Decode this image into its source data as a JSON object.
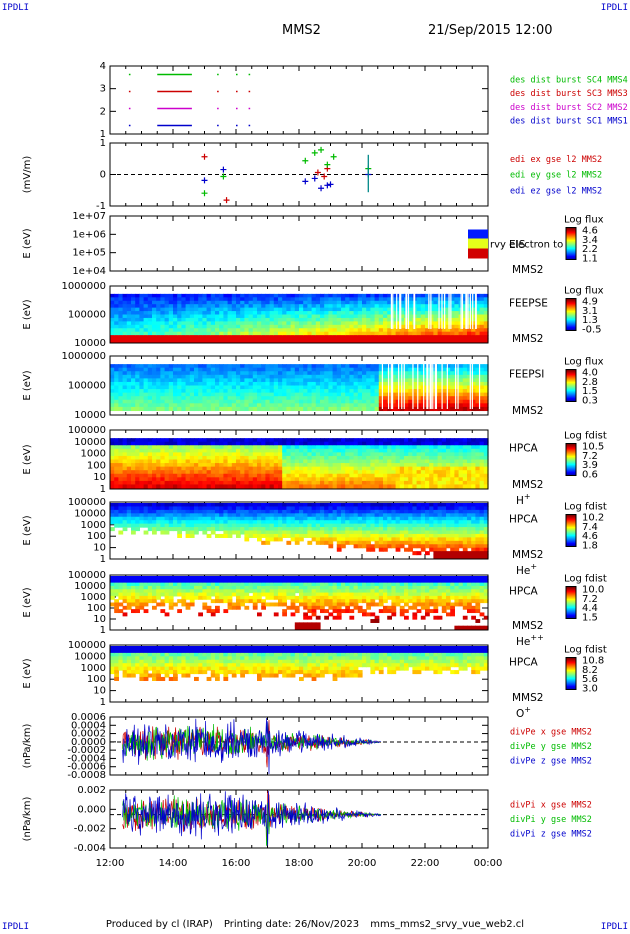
{
  "header": {
    "corner_left_top": "IPDLI",
    "corner_right_top": "IPDLI",
    "corner_left_bottom": "IPDLI",
    "corner_right_bottom": "IPDLI",
    "spacecraft": "MMS2",
    "datetime": "21/Sep/2015 12:00"
  },
  "footer": {
    "produced_by": "Produced by cl (IRAP)",
    "printing_date": "Printing date: 26/Nov/2023",
    "filename": "mms_mms2_srvy_vue_web2.cl"
  },
  "time_axis": {
    "ticks": [
      "12:00",
      "14:00",
      "16:00",
      "18:00",
      "20:00",
      "22:00",
      "00:00"
    ],
    "range_hours": [
      12,
      24
    ]
  },
  "colors": {
    "blue": "#0000cc",
    "magenta": "#cc00cc",
    "red": "#cc0000",
    "green": "#00bb00"
  },
  "chart_data": [
    {
      "type": "scatter",
      "panel": "burst",
      "yticks": [
        "1",
        "2",
        "3",
        "4"
      ],
      "ylim": [
        0.5,
        4.5
      ],
      "series": [
        {
          "name": "des dist burst SC1 MMS1",
          "color": "#0000cc",
          "level": 1,
          "intervals": [
            [
              12.6,
              12.65
            ],
            [
              13.5,
              14.6
            ],
            [
              15.4,
              15.45
            ],
            [
              16.0,
              16.05
            ],
            [
              16.4,
              16.45
            ]
          ]
        },
        {
          "name": "des dist burst SC2 MMS2",
          "color": "#cc00cc",
          "level": 2,
          "intervals": [
            [
              12.6,
              12.65
            ],
            [
              13.5,
              14.6
            ],
            [
              15.4,
              15.45
            ],
            [
              16.0,
              16.05
            ],
            [
              16.4,
              16.45
            ]
          ]
        },
        {
          "name": "des dist burst SC3 MMS3",
          "color": "#cc0000",
          "level": 3,
          "intervals": [
            [
              12.6,
              12.65
            ],
            [
              13.5,
              14.6
            ],
            [
              15.4,
              15.45
            ],
            [
              16.0,
              16.05
            ],
            [
              16.4,
              16.45
            ]
          ]
        },
        {
          "name": "des dist burst SC4 MMS4",
          "color": "#00bb00",
          "level": 4,
          "intervals": [
            [
              12.6,
              12.65
            ],
            [
              13.5,
              14.6
            ],
            [
              15.4,
              15.45
            ],
            [
              16.0,
              16.05
            ],
            [
              16.4,
              16.45
            ]
          ]
        }
      ]
    },
    {
      "type": "scatter",
      "panel": "edi",
      "ylabel": "(mV/m)",
      "yticks": [
        "-1",
        "0",
        "1"
      ],
      "ylim": [
        -1.6,
        1.6
      ],
      "series": [
        {
          "name": "edi ex gse l2 MMS2",
          "color": "#cc0000",
          "points": [
            [
              15.0,
              0.9
            ],
            [
              15.7,
              -1.3
            ],
            [
              18.6,
              0.1
            ],
            [
              18.8,
              -0.1
            ],
            [
              18.9,
              0.3
            ]
          ]
        },
        {
          "name": "edi ey gse l2 MMS2",
          "color": "#00bb00",
          "points": [
            [
              15.0,
              -0.95
            ],
            [
              15.6,
              -0.1
            ],
            [
              18.2,
              0.7
            ],
            [
              18.5,
              1.1
            ],
            [
              18.7,
              1.25
            ],
            [
              18.9,
              0.5
            ],
            [
              19.1,
              0.9
            ],
            [
              20.2,
              0.3
            ]
          ]
        },
        {
          "name": "edi ez gse l2 MMS2",
          "color": "#0000cc",
          "points": [
            [
              15.0,
              -0.3
            ],
            [
              15.6,
              0.25
            ],
            [
              18.2,
              -0.35
            ],
            [
              18.5,
              -0.2
            ],
            [
              18.7,
              -0.7
            ],
            [
              18.9,
              -0.55
            ],
            [
              19.0,
              -0.5
            ],
            [
              20.2,
              0.0
            ]
          ]
        }
      ]
    },
    {
      "type": "heatmap",
      "panel": "eis",
      "ylabel": "E (eV)",
      "yticks": [
        "1e+04",
        "1e+05",
        "1e+06",
        "1e+07"
      ],
      "labels": [
        "EIS",
        "MMS2"
      ],
      "overlay_text": "rvy electron to",
      "colorbar": {
        "title": "Log flux",
        "ticks": [
          "1.1",
          "2.2",
          "3.4",
          "4.6"
        ]
      }
    },
    {
      "type": "heatmap",
      "panel": "feeps-e",
      "ylabel": "E (eV)",
      "yticks": [
        "10000",
        "100000",
        "1000000"
      ],
      "labels": [
        "FEEPSE",
        "MMS2"
      ],
      "colorbar": {
        "title": "Log flux",
        "ticks": [
          "-0.5",
          "1.3",
          "3.1",
          "4.9"
        ]
      }
    },
    {
      "type": "heatmap",
      "panel": "feeps-i",
      "ylabel": "E (eV)",
      "yticks": [
        "10000",
        "100000",
        "1000000"
      ],
      "labels": [
        "FEEPSI",
        "MMS2"
      ],
      "colorbar": {
        "title": "Log flux",
        "ticks": [
          "0.3",
          "1.5",
          "2.8",
          "4.0"
        ]
      }
    },
    {
      "type": "heatmap",
      "panel": "hpca-h",
      "ylabel": "E (eV)",
      "yticks": [
        "1",
        "10",
        "100",
        "1000",
        "10000",
        "100000"
      ],
      "labels": [
        "HPCA",
        "MMS2"
      ],
      "species": "H",
      "charge": "+",
      "colorbar": {
        "title": "Log fdist",
        "ticks": [
          "0.6",
          "3.9",
          "7.2",
          "10.5"
        ]
      }
    },
    {
      "type": "heatmap",
      "panel": "hpca-he1",
      "ylabel": "E (eV)",
      "yticks": [
        "1",
        "10",
        "100",
        "1000",
        "10000",
        "100000"
      ],
      "labels": [
        "HPCA",
        "MMS2"
      ],
      "species": "He",
      "charge": "+",
      "colorbar": {
        "title": "Log fdist",
        "ticks": [
          "1.8",
          "4.6",
          "7.4",
          "10.2"
        ]
      }
    },
    {
      "type": "heatmap",
      "panel": "hpca-he2",
      "ylabel": "E (eV)",
      "yticks": [
        "1",
        "10",
        "100",
        "1000",
        "10000",
        "100000"
      ],
      "labels": [
        "HPCA",
        "MMS2"
      ],
      "species": "He",
      "charge": "++",
      "colorbar": {
        "title": "Log fdist",
        "ticks": [
          "1.5",
          "4.4",
          "7.2",
          "10.0"
        ]
      }
    },
    {
      "type": "heatmap",
      "panel": "hpca-o",
      "ylabel": "E (eV)",
      "yticks": [
        "1",
        "10",
        "100",
        "1000",
        "10000",
        "100000"
      ],
      "labels": [
        "HPCA",
        "MMS2"
      ],
      "species": "O",
      "charge": "+",
      "colorbar": {
        "title": "Log fdist",
        "ticks": [
          "3.0",
          "5.6",
          "8.2",
          "10.8"
        ]
      }
    },
    {
      "type": "line",
      "panel": "divpe",
      "ylabel": "(nPa/km)",
      "yticks": [
        "-0.0008",
        "-0.0006",
        "-0.0004",
        "-0.0002",
        "0.0000",
        "0.0002",
        "0.0004",
        "0.0006"
      ],
      "ylim": [
        -0.0009,
        0.00068
      ],
      "envelope_hours": [
        12.4,
        20.6
      ],
      "series": [
        {
          "name": "divPe x gse MMS2",
          "color": "#cc0000"
        },
        {
          "name": "divPe y gse MMS2",
          "color": "#00bb00"
        },
        {
          "name": "divPe z gse MMS2",
          "color": "#0000cc"
        }
      ]
    },
    {
      "type": "line",
      "panel": "divpi",
      "ylabel": "(nPa/km)",
      "yticks": [
        "-0.004",
        "-0.002",
        "0.000",
        "0.002"
      ],
      "ylim": [
        -0.0046,
        0.0034
      ],
      "envelope_hours": [
        12.4,
        20.6
      ],
      "series": [
        {
          "name": "divPi x gse MMS2",
          "color": "#cc0000"
        },
        {
          "name": "divPi y gse MMS2",
          "color": "#00bb00"
        },
        {
          "name": "divPi z gse MMS2",
          "color": "#0000cc"
        }
      ]
    }
  ]
}
